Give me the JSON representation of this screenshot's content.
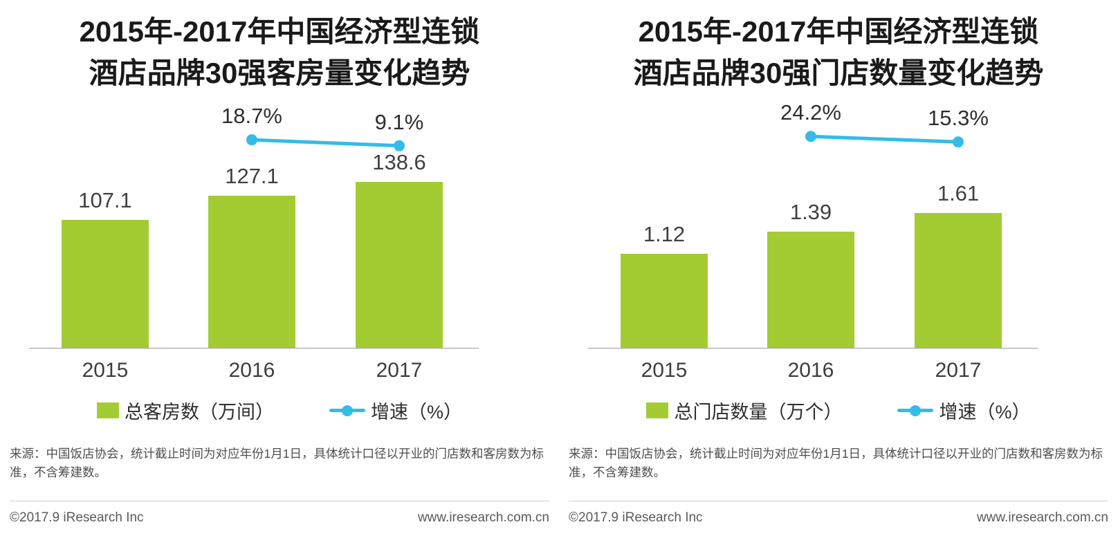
{
  "chart_data": [
    {
      "type": "bar",
      "title": "2015年-2017年中国经济型连锁酒店品牌30强客房量变化趋势",
      "title_lines": [
        "2015年-2017年中国经济型连锁",
        "酒店品牌30强客房量变化趋势"
      ],
      "categories": [
        "2015",
        "2016",
        "2017"
      ],
      "series": [
        {
          "name": "总客房数（万间）",
          "type": "bar",
          "values": [
            107.1,
            127.1,
            138.6
          ],
          "labels": [
            "107.1",
            "127.1",
            "138.6"
          ],
          "unit": "万间"
        },
        {
          "name": "增速（%）",
          "type": "line",
          "values": [
            null,
            18.7,
            9.1
          ],
          "labels": [
            "18.7%",
            "9.1%"
          ],
          "unit": "%"
        }
      ],
      "ylim": [
        0,
        160
      ],
      "grid": false,
      "legend_position": "bottom",
      "source_note": "来源：中国饭店协会，统计截止时间为对应年份1月1日，具体统计口径以开业的门店数和客房数为标准，不含筹建数。"
    },
    {
      "type": "bar",
      "title": "2015年-2017年中国经济型连锁酒店品牌30强门店数量变化趋势",
      "title_lines": [
        "2015年-2017年中国经济型连锁",
        "酒店品牌30强门店数量变化趋势"
      ],
      "categories": [
        "2015",
        "2016",
        "2017"
      ],
      "series": [
        {
          "name": "总门店数量（万个）",
          "type": "bar",
          "values": [
            1.12,
            1.39,
            1.61
          ],
          "labels": [
            "1.12",
            "1.39",
            "1.61"
          ],
          "unit": "万个"
        },
        {
          "name": "增速（%）",
          "type": "line",
          "values": [
            null,
            24.2,
            15.3
          ],
          "labels": [
            "24.2%",
            "15.3%"
          ],
          "unit": "%"
        }
      ],
      "ylim": [
        0,
        1.8
      ],
      "grid": false,
      "legend_position": "bottom",
      "source_note": "来源：中国饭店协会，统计截止时间为对应年份1月1日，具体统计口径以开业的门店数和客房数为标准，不含筹建数。"
    }
  ],
  "footer": {
    "copyright": "©2017.9 iResearch Inc",
    "website": "www.iresearch.com.cn"
  },
  "colors": {
    "bar_green": "#a3cc33",
    "line_blue": "#33bce5"
  }
}
